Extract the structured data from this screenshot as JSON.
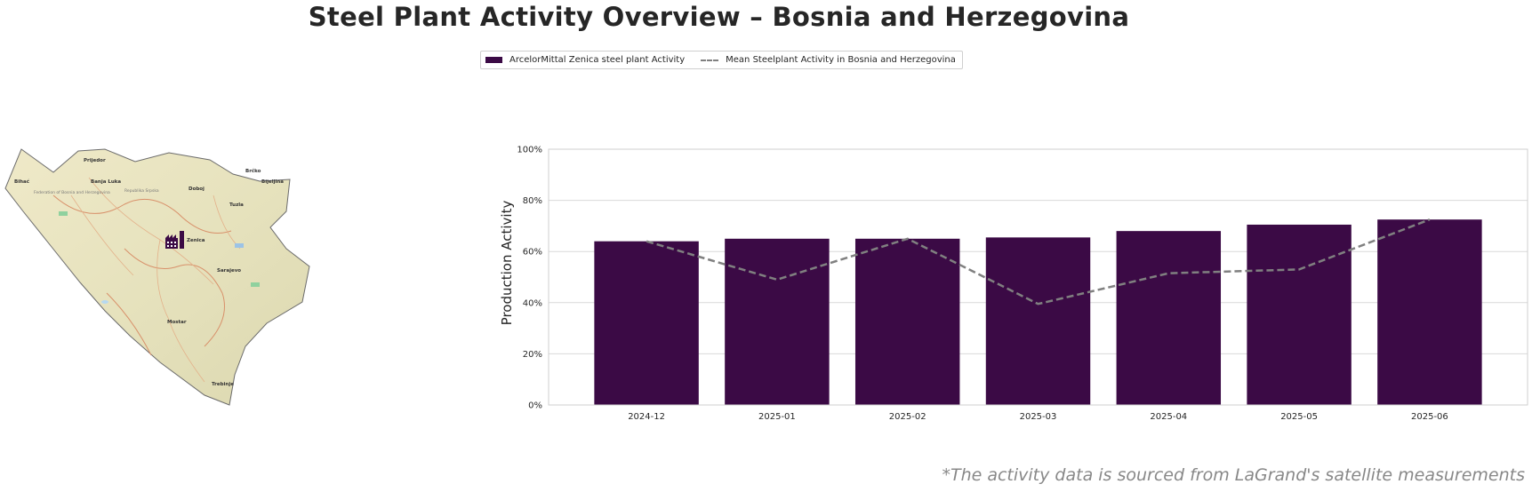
{
  "title": "Steel Plant Activity Overview – Bosnia and Herzegovina",
  "footnote": "*The activity data is sourced from LaGrand's satellite measurements",
  "colors": {
    "bar": "#3b0a45",
    "mean_line": "#808080",
    "grid": "#d9d9d9"
  },
  "legend": {
    "bar_label": "ArcelorMittal Zenica steel plant Activity",
    "line_label": "Mean Steelplant Activity in Bosnia and Herzegovina"
  },
  "map": {
    "plant_icon": "factory-icon",
    "cities": [
      {
        "name": "Prijedor"
      },
      {
        "name": "Banja Luka"
      },
      {
        "name": "Bihać"
      },
      {
        "name": "Doboj"
      },
      {
        "name": "Tuzla"
      },
      {
        "name": "Bijeljina"
      },
      {
        "name": "Brčko"
      },
      {
        "name": "Zenica"
      },
      {
        "name": "Sarajevo"
      },
      {
        "name": "Mostar"
      },
      {
        "name": "Trebinje"
      }
    ],
    "region_labels": [
      "Federation of Bosnia and Herzegovina",
      "Republika Srpska"
    ]
  },
  "chart_data": {
    "type": "bar",
    "categories": [
      "2024-12",
      "2025-01",
      "2025-02",
      "2025-03",
      "2025-04",
      "2025-05",
      "2025-06"
    ],
    "series": [
      {
        "name": "ArcelorMittal Zenica steel plant Activity",
        "type": "bar",
        "values": [
          64,
          65,
          65,
          65.5,
          68,
          70.5,
          72.5
        ]
      },
      {
        "name": "Mean Steelplant Activity in Bosnia and Herzegovina",
        "type": "line",
        "style": "dashed",
        "values": [
          64,
          49,
          65,
          39.5,
          51.5,
          53,
          72.5
        ]
      }
    ],
    "ylabel": "Production Activity",
    "xlabel": "",
    "ylim": [
      0,
      100
    ],
    "yticks": [
      "0%",
      "20%",
      "40%",
      "60%",
      "80%",
      "100%"
    ],
    "grid": true,
    "legend_position": "top-center"
  }
}
